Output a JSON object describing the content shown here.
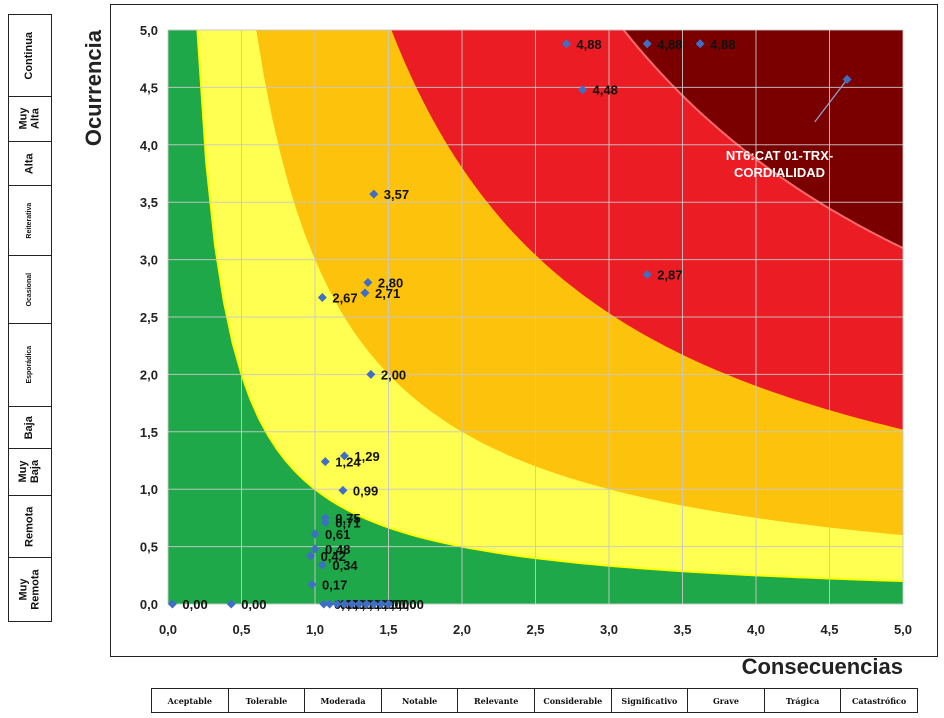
{
  "chart_data": {
    "type": "scatter",
    "title": "",
    "xlabel": "Consecuencias",
    "ylabel": "Ocurrencia",
    "xlim": [
      0,
      5
    ],
    "ylim": [
      0,
      5
    ],
    "x_ticks": [
      "0,0",
      "0,5",
      "1,0",
      "1,5",
      "2,0",
      "2,5",
      "3,0",
      "3,5",
      "4,0",
      "4,5",
      "5,0"
    ],
    "y_ticks": [
      "0,0",
      "0,5",
      "1,0",
      "1,5",
      "2,0",
      "2,5",
      "3,0",
      "3,5",
      "4,0",
      "4,5",
      "5,0"
    ],
    "grid": true,
    "background_zones": [
      {
        "zone": "green",
        "color": "#1fa84a",
        "boundary_xy": 1.0
      },
      {
        "zone": "yellow",
        "color": "#ffff52",
        "boundary_xy": 3.0
      },
      {
        "zone": "orange",
        "color": "#fcc20c",
        "boundary_xy": 7.6
      },
      {
        "zone": "red",
        "color": "#ec1c24",
        "boundary_xy": 15.5
      },
      {
        "zone": "dark-red",
        "color": "#7a0000"
      }
    ],
    "marker_color": "#3f6fc4",
    "points": [
      {
        "x": 0.03,
        "y": 0.0,
        "label": "0,00"
      },
      {
        "x": 0.43,
        "y": 0.0,
        "label": "0,00"
      },
      {
        "x": 1.06,
        "y": 0.0,
        "label": "0,00"
      },
      {
        "x": 1.1,
        "y": 0.0,
        "label": "0,00"
      },
      {
        "x": 1.15,
        "y": 0.0,
        "label": "0,00"
      },
      {
        "x": 1.2,
        "y": 0.0,
        "label": "0,00"
      },
      {
        "x": 1.25,
        "y": 0.0,
        "label": "0,00"
      },
      {
        "x": 1.3,
        "y": 0.0,
        "label": "0,00"
      },
      {
        "x": 1.35,
        "y": 0.0,
        "label": "0,00"
      },
      {
        "x": 1.4,
        "y": 0.0,
        "label": "0,00"
      },
      {
        "x": 1.45,
        "y": 0.0,
        "label": "0,00"
      },
      {
        "x": 1.5,
        "y": 0.0,
        "label": "0,00"
      },
      {
        "x": 0.98,
        "y": 0.17,
        "label": "0,17"
      },
      {
        "x": 1.05,
        "y": 0.34,
        "label": "0,34"
      },
      {
        "x": 0.97,
        "y": 0.42,
        "label": "0,42"
      },
      {
        "x": 1.0,
        "y": 0.48,
        "label": "0,48"
      },
      {
        "x": 1.0,
        "y": 0.61,
        "label": "0,61"
      },
      {
        "x": 1.07,
        "y": 0.71,
        "label": "0,71"
      },
      {
        "x": 1.07,
        "y": 0.75,
        "label": "0,75"
      },
      {
        "x": 1.19,
        "y": 0.99,
        "label": "0,99"
      },
      {
        "x": 1.07,
        "y": 1.24,
        "label": "1,24"
      },
      {
        "x": 1.2,
        "y": 1.29,
        "label": "1,29"
      },
      {
        "x": 1.38,
        "y": 2.0,
        "label": "2,00"
      },
      {
        "x": 1.05,
        "y": 2.67,
        "label": "2,67"
      },
      {
        "x": 1.34,
        "y": 2.71,
        "label": "2,71"
      },
      {
        "x": 1.36,
        "y": 2.8,
        "label": "2,80"
      },
      {
        "x": 1.4,
        "y": 3.57,
        "label": "3,57"
      },
      {
        "x": 3.26,
        "y": 2.87,
        "label": "2,87"
      },
      {
        "x": 2.82,
        "y": 4.48,
        "label": "4,48"
      },
      {
        "x": 2.71,
        "y": 4.88,
        "label": "4,88"
      },
      {
        "x": 3.26,
        "y": 4.88,
        "label": "4,88"
      },
      {
        "x": 3.62,
        "y": 4.88,
        "label": "4,88"
      },
      {
        "x": 4.62,
        "y": 4.57,
        "label": ""
      }
    ],
    "annotation": {
      "text": "NT6:CAT 01-TRX-\nCORDIALIDAD",
      "color": "#ffffff",
      "points_to": {
        "x": 4.62,
        "y": 4.57
      }
    }
  },
  "side_scale": {
    "label": "Ocurrencia",
    "items": [
      "Continua",
      "Muy\nAlta",
      "Alta",
      "Reiterativa",
      "Ocasional",
      "Esporádica",
      "Baja",
      "Muy\nBaja",
      "Remota",
      "Muy\nRemota"
    ]
  },
  "bottom_scale": {
    "label": "Consecuencias",
    "items": [
      "Aceptable",
      "Tolerable",
      "Moderada",
      "Notable",
      "Relevante",
      "Considerable",
      "Significativo",
      "Grave",
      "Trágica",
      "Catastrófico"
    ]
  }
}
